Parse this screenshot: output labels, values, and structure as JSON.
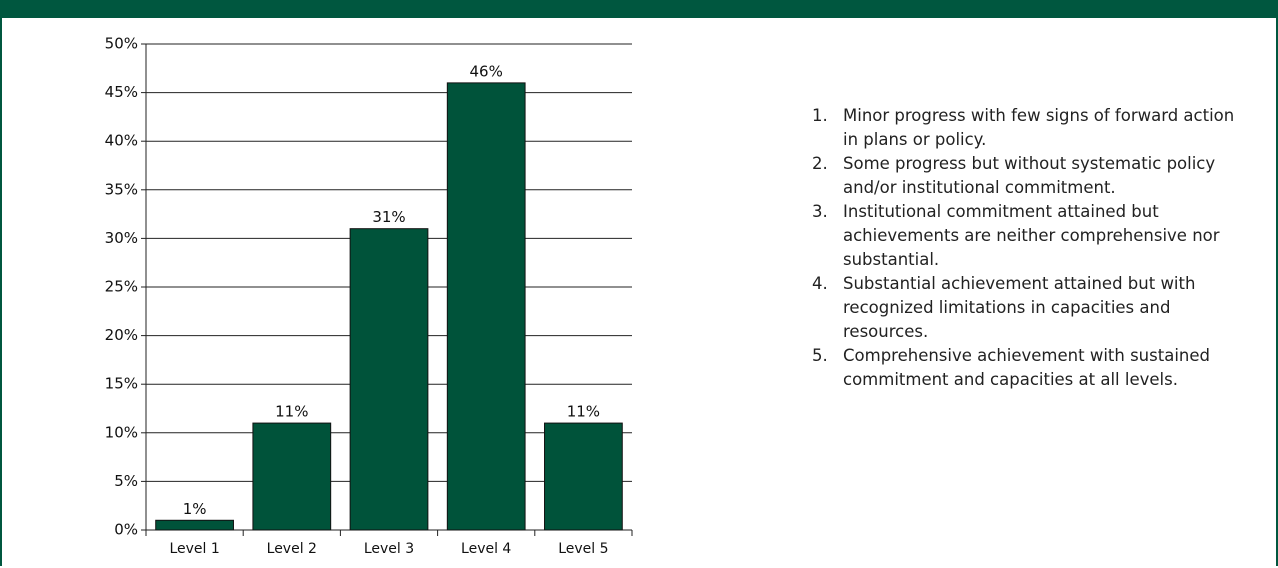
{
  "chart_data": {
    "type": "bar",
    "categories": [
      "Level 1",
      "Level 2",
      "Level 3",
      "Level 4",
      "Level 5"
    ],
    "values": [
      1,
      11,
      31,
      46,
      11
    ],
    "value_labels": [
      "1%",
      "11%",
      "31%",
      "46%",
      "11%"
    ],
    "color": "#00533a",
    "ylim": [
      0,
      50
    ],
    "yticks": [
      {
        "value": 0,
        "label": "0%"
      },
      {
        "value": 5,
        "label": "5%"
      },
      {
        "value": 10,
        "label": "10%"
      },
      {
        "value": 15,
        "label": "15%"
      },
      {
        "value": 20,
        "label": "20%"
      },
      {
        "value": 25,
        "label": "25%"
      },
      {
        "value": 30,
        "label": "30%"
      },
      {
        "value": 35,
        "label": "35%"
      },
      {
        "value": 40,
        "label": "40%"
      },
      {
        "value": 45,
        "label": "45%"
      },
      {
        "value": 50,
        "label": "50%"
      }
    ],
    "grid": true
  },
  "notes": [
    {
      "number": "1.",
      "text": "Minor progress with few signs of forward action in plans or policy."
    },
    {
      "number": "2.",
      "text": "Some progress but without systematic policy and/or institutional commitment."
    },
    {
      "number": "3.",
      "text": "Institutional commitment attained but achievements are neither comprehensive nor substantial."
    },
    {
      "number": "4.",
      "text": "Substantial achievement attained but with recognized limitations in capacities and resources."
    },
    {
      "number": "5.",
      "text": "Comprehensive achievement with sustained commitment and capacities at all levels."
    }
  ]
}
